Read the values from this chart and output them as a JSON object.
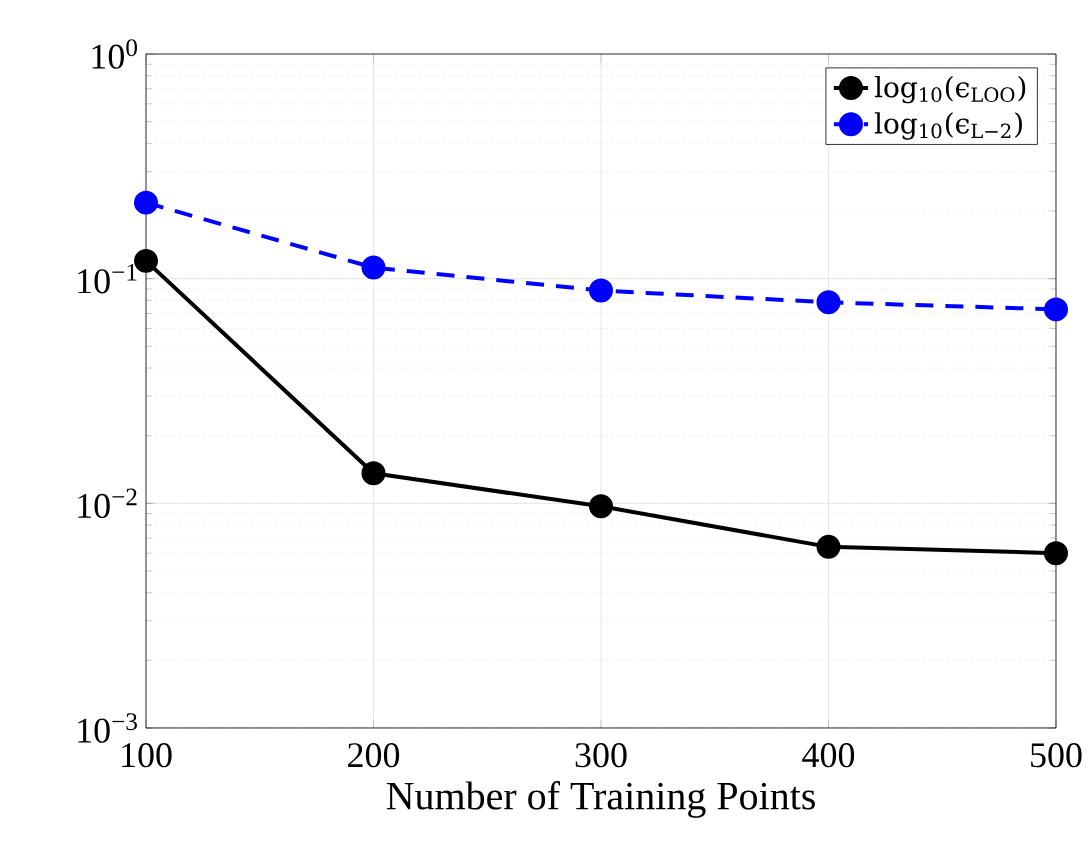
{
  "chart_data": {
    "type": "line",
    "xlabel": "Number of Training Points",
    "x": [
      100,
      200,
      300,
      400,
      500
    ],
    "series": [
      {
        "name": "log$_{10}$(ϵ$_{LOO}$)",
        "color": "#000000",
        "line_style": "solid",
        "values": [
          0.12,
          0.0136,
          0.0097,
          0.0064,
          0.006
        ]
      },
      {
        "name": "log$_{10}$(ϵ$_{L−2}$)",
        "color": "#0000ff",
        "line_style": "dashed",
        "values": [
          0.218,
          0.112,
          0.0885,
          0.0785,
          0.073
        ]
      }
    ],
    "xlim": [
      100,
      500
    ],
    "xticks": [
      100,
      200,
      300,
      400,
      500
    ],
    "ylim": [
      0.001,
      1
    ],
    "yticks": [
      {
        "value": 0.001,
        "label": "10$^{−3}$"
      },
      {
        "value": 0.01,
        "label": "10$^{−2}$"
      },
      {
        "value": 0.1,
        "label": "10$^{−1}$"
      },
      {
        "value": 1,
        "label": "10$^{0}$"
      }
    ],
    "log": "y",
    "grid": true,
    "legend": "top right",
    "marker": "circle"
  }
}
